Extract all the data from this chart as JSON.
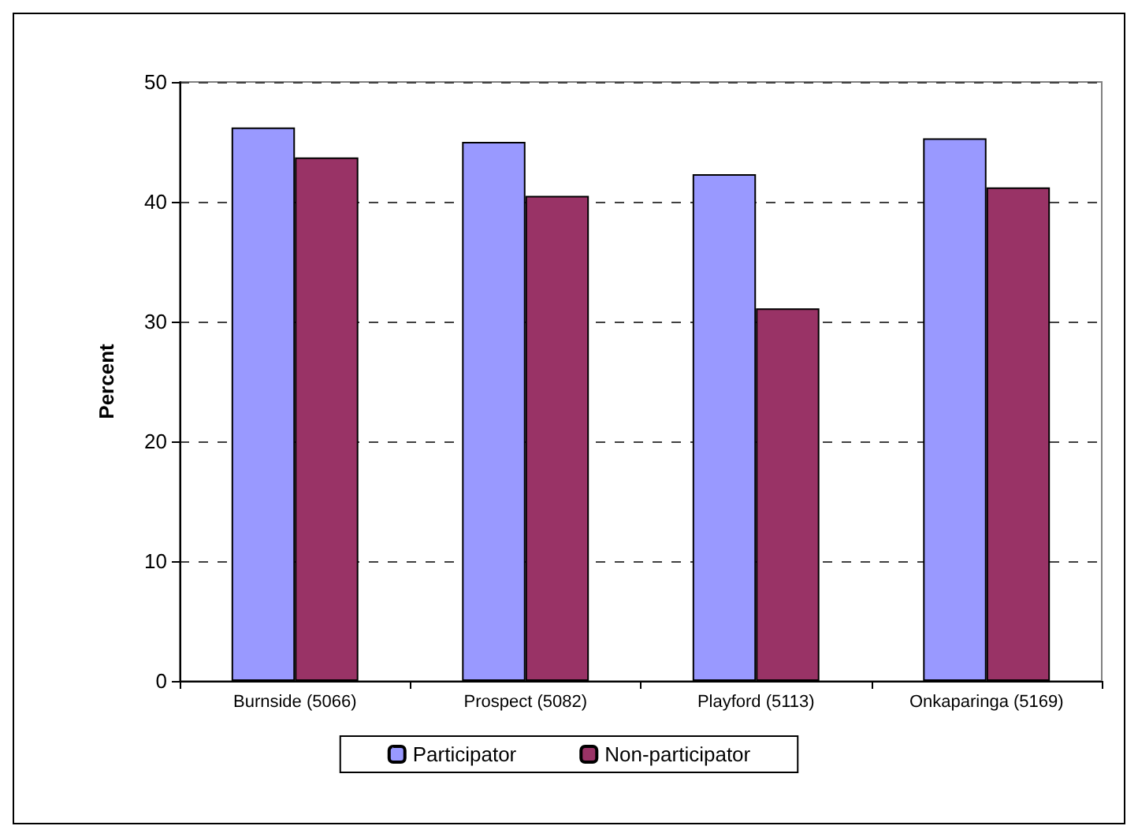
{
  "chart_data": {
    "type": "bar",
    "ylabel": "Percent",
    "categories": [
      "Burnside (5066)",
      "Prospect (5082)",
      "Playford (5113)",
      "Onkaparinga (5169)"
    ],
    "series": [
      {
        "name": "Participator",
        "color": "#9999ff",
        "values": [
          46.2,
          45.0,
          42.3,
          45.3
        ]
      },
      {
        "name": "Non-participator",
        "color": "#993366",
        "values": [
          43.7,
          40.5,
          31.1,
          41.2
        ]
      }
    ],
    "ylim": [
      0,
      50
    ],
    "yticks": [
      0,
      10,
      20,
      30,
      40,
      50
    ],
    "grid": "y",
    "legend": "bottom"
  }
}
